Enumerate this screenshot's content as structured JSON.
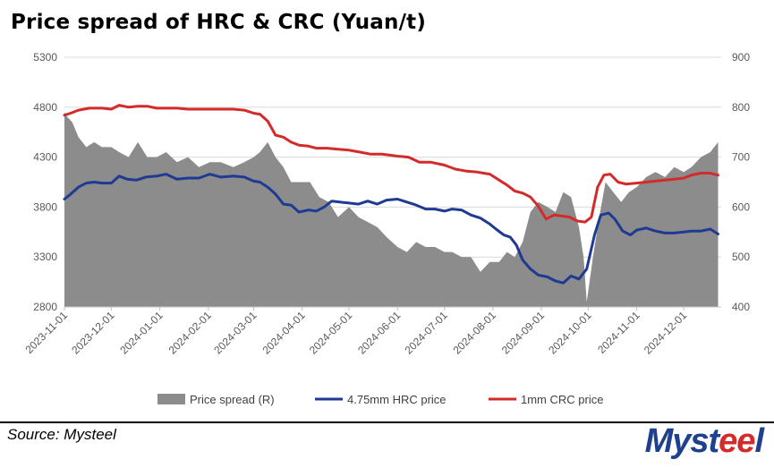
{
  "title": "Price spread of HRC & CRC (Yuan/t)",
  "source": "Source: Mysteel",
  "logo_text": "Mysteel",
  "chart_data": {
    "type": "line",
    "title": "Price spread of HRC & CRC (Yuan/t)",
    "x_ticks": [
      "2023-11-01",
      "2023-12-01",
      "2024-01-01",
      "2024-02-01",
      "2024-03-01",
      "2024-04-01",
      "2024-05-01",
      "2024-06-01",
      "2024-07-01",
      "2024-08-01",
      "2024-09-01",
      "2024-10-01",
      "2024-11-01",
      "2024-12-01"
    ],
    "y_left": {
      "min": 2800,
      "max": 5300,
      "ticks": [
        2800,
        3300,
        3800,
        4300,
        4800,
        5300
      ]
    },
    "y_right": {
      "min": 400,
      "max": 900,
      "ticks": [
        400,
        500,
        600,
        700,
        800,
        900
      ]
    },
    "grid": true,
    "legend_position": "bottom",
    "series": [
      {
        "name": "Price spread (R)",
        "kind": "area",
        "axis": "right",
        "color": "#8c8c8c",
        "dates": [
          "2023-11-01",
          "2023-11-03",
          "2023-11-06",
          "2023-11-10",
          "2023-11-15",
          "2023-11-20",
          "2023-11-25",
          "2023-12-01",
          "2023-12-06",
          "2023-12-12",
          "2023-12-18",
          "2023-12-24",
          "2023-12-30",
          "2024-01-05",
          "2024-01-12",
          "2024-01-19",
          "2024-01-26",
          "2024-02-02",
          "2024-02-09",
          "2024-02-17",
          "2024-02-24",
          "2024-03-01",
          "2024-03-05",
          "2024-03-10",
          "2024-03-15",
          "2024-03-20",
          "2024-03-25",
          "2024-04-01",
          "2024-04-06",
          "2024-04-12",
          "2024-04-18",
          "2024-04-24",
          "2024-05-01",
          "2024-05-07",
          "2024-05-13",
          "2024-05-19",
          "2024-05-25",
          "2024-06-01",
          "2024-06-07",
          "2024-06-13",
          "2024-06-19",
          "2024-06-25",
          "2024-07-01",
          "2024-07-06",
          "2024-07-12",
          "2024-07-18",
          "2024-07-24",
          "2024-07-30",
          "2024-08-05",
          "2024-08-10",
          "2024-08-15",
          "2024-08-20",
          "2024-08-25",
          "2024-08-30",
          "2024-09-05",
          "2024-09-10",
          "2024-09-15",
          "2024-09-20",
          "2024-09-25",
          "2024-09-28",
          "2024-09-30",
          "2024-10-04",
          "2024-10-08",
          "2024-10-12",
          "2024-10-17",
          "2024-10-22",
          "2024-10-27",
          "2024-11-01",
          "2024-11-07",
          "2024-11-13",
          "2024-11-19",
          "2024-11-25",
          "2024-12-01",
          "2024-12-06",
          "2024-12-12",
          "2024-12-18",
          "2024-12-23"
        ],
        "values": [
          790,
          780,
          770,
          740,
          720,
          730,
          720,
          720,
          710,
          700,
          730,
          700,
          700,
          710,
          690,
          700,
          680,
          690,
          690,
          680,
          690,
          700,
          710,
          730,
          700,
          680,
          650,
          650,
          650,
          620,
          610,
          580,
          600,
          580,
          570,
          560,
          540,
          520,
          510,
          530,
          520,
          520,
          510,
          510,
          500,
          500,
          470,
          490,
          490,
          510,
          500,
          530,
          590,
          610,
          600,
          590,
          630,
          620,
          560,
          500,
          410,
          500,
          580,
          650,
          630,
          610,
          630,
          640,
          660,
          670,
          660,
          680,
          670,
          680,
          700,
          710,
          730
        ]
      },
      {
        "name": "4.75mm HRC price",
        "kind": "line",
        "axis": "left",
        "color": "#1f3a93",
        "dates": [
          "2023-11-01",
          "2023-11-05",
          "2023-11-10",
          "2023-11-15",
          "2023-11-20",
          "2023-11-25",
          "2023-12-01",
          "2023-12-06",
          "2023-12-11",
          "2023-12-17",
          "2023-12-23",
          "2023-12-30",
          "2024-01-05",
          "2024-01-12",
          "2024-01-19",
          "2024-01-26",
          "2024-02-02",
          "2024-02-09",
          "2024-02-17",
          "2024-02-24",
          "2024-03-01",
          "2024-03-05",
          "2024-03-10",
          "2024-03-15",
          "2024-03-20",
          "2024-03-25",
          "2024-03-30",
          "2024-04-05",
          "2024-04-10",
          "2024-04-15",
          "2024-04-20",
          "2024-04-25",
          "2024-05-01",
          "2024-05-07",
          "2024-05-13",
          "2024-05-19",
          "2024-05-25",
          "2024-06-01",
          "2024-06-07",
          "2024-06-13",
          "2024-06-19",
          "2024-06-25",
          "2024-07-01",
          "2024-07-06",
          "2024-07-12",
          "2024-07-18",
          "2024-07-24",
          "2024-07-30",
          "2024-08-03",
          "2024-08-08",
          "2024-08-12",
          "2024-08-16",
          "2024-08-20",
          "2024-08-25",
          "2024-08-30",
          "2024-09-05",
          "2024-09-10",
          "2024-09-15",
          "2024-09-20",
          "2024-09-25",
          "2024-09-30",
          "2024-10-05",
          "2024-10-09",
          "2024-10-14",
          "2024-10-18",
          "2024-10-23",
          "2024-10-28",
          "2024-11-01",
          "2024-11-07",
          "2024-11-13",
          "2024-11-19",
          "2024-11-25",
          "2024-12-01",
          "2024-12-06",
          "2024-12-12",
          "2024-12-18",
          "2024-12-23"
        ],
        "values": [
          3880,
          3930,
          4000,
          4040,
          4050,
          4040,
          4040,
          4110,
          4080,
          4070,
          4100,
          4110,
          4130,
          4080,
          4090,
          4090,
          4130,
          4100,
          4110,
          4100,
          4060,
          4050,
          4000,
          3930,
          3830,
          3820,
          3750,
          3770,
          3760,
          3800,
          3860,
          3850,
          3840,
          3830,
          3860,
          3830,
          3870,
          3880,
          3850,
          3820,
          3780,
          3780,
          3760,
          3780,
          3770,
          3720,
          3690,
          3630,
          3580,
          3520,
          3500,
          3420,
          3270,
          3180,
          3120,
          3100,
          3060,
          3040,
          3110,
          3080,
          3180,
          3520,
          3720,
          3740,
          3680,
          3560,
          3520,
          3570,
          3590,
          3560,
          3540,
          3540,
          3550,
          3560,
          3560,
          3580,
          3530
        ]
      },
      {
        "name": "1mm CRC price",
        "kind": "line",
        "axis": "left",
        "color": "#d42a2a",
        "dates": [
          "2023-11-01",
          "2023-11-05",
          "2023-11-10",
          "2023-11-17",
          "2023-11-25",
          "2023-12-01",
          "2023-12-06",
          "2023-12-12",
          "2023-12-18",
          "2023-12-24",
          "2023-12-30",
          "2024-01-05",
          "2024-01-12",
          "2024-01-19",
          "2024-01-26",
          "2024-02-02",
          "2024-02-09",
          "2024-02-17",
          "2024-02-24",
          "2024-03-01",
          "2024-03-05",
          "2024-03-10",
          "2024-03-15",
          "2024-03-20",
          "2024-03-25",
          "2024-03-30",
          "2024-04-05",
          "2024-04-10",
          "2024-04-17",
          "2024-04-24",
          "2024-05-01",
          "2024-05-08",
          "2024-05-15",
          "2024-05-22",
          "2024-06-01",
          "2024-06-08",
          "2024-06-15",
          "2024-06-22",
          "2024-07-01",
          "2024-07-08",
          "2024-07-15",
          "2024-07-22",
          "2024-07-30",
          "2024-08-05",
          "2024-08-10",
          "2024-08-15",
          "2024-08-20",
          "2024-08-25",
          "2024-08-30",
          "2024-09-04",
          "2024-09-09",
          "2024-09-14",
          "2024-09-19",
          "2024-09-24",
          "2024-09-29",
          "2024-10-03",
          "2024-10-07",
          "2024-10-11",
          "2024-10-15",
          "2024-10-20",
          "2024-10-25",
          "2024-11-01",
          "2024-11-07",
          "2024-11-13",
          "2024-11-19",
          "2024-11-25",
          "2024-12-01",
          "2024-12-06",
          "2024-12-12",
          "2024-12-18",
          "2024-12-23"
        ],
        "values": [
          4720,
          4740,
          4770,
          4790,
          4790,
          4780,
          4820,
          4800,
          4810,
          4810,
          4790,
          4790,
          4790,
          4780,
          4780,
          4780,
          4780,
          4780,
          4770,
          4740,
          4730,
          4660,
          4520,
          4500,
          4450,
          4420,
          4410,
          4390,
          4390,
          4380,
          4370,
          4350,
          4330,
          4330,
          4310,
          4300,
          4250,
          4250,
          4220,
          4180,
          4160,
          4150,
          4130,
          4070,
          4020,
          3960,
          3940,
          3900,
          3810,
          3680,
          3720,
          3710,
          3700,
          3660,
          3650,
          3700,
          4000,
          4120,
          4130,
          4050,
          4030,
          4040,
          4050,
          4060,
          4070,
          4080,
          4090,
          4120,
          4140,
          4140,
          4120
        ]
      }
    ]
  }
}
